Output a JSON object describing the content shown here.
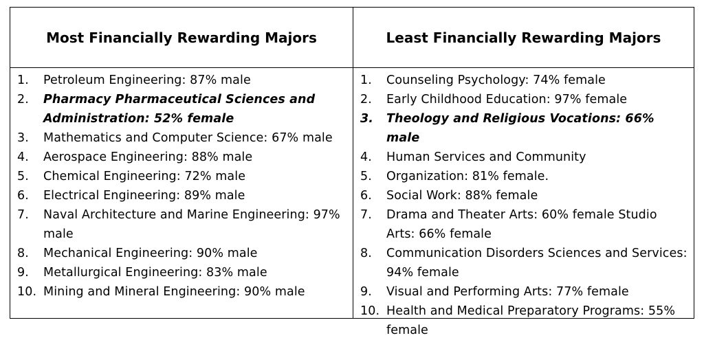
{
  "left": {
    "title": "Most Financially Rewarding Majors",
    "items": [
      {
        "num": "1.",
        "text": "Petroleum Engineering: 87% male"
      },
      {
        "num": "2.",
        "text": "Pharmacy Pharmaceutical Sciences and Administration: 52% female"
      },
      {
        "num": "3.",
        "text": "Mathematics and Computer Science: 67% male"
      },
      {
        "num": "4.",
        "text": "Aerospace Engineering: 88% male"
      },
      {
        "num": "5.",
        "text": "Chemical Engineering: 72% male"
      },
      {
        "num": "6.",
        "text": "Electrical Engineering: 89% male"
      },
      {
        "num": "7.",
        "text": "Naval Architecture and Marine Engineering: 97% male"
      },
      {
        "num": "8.",
        "text": "Mechanical Engineering: 90% male"
      },
      {
        "num": "9.",
        "text": "Metallurgical Engineering: 83% male"
      },
      {
        "num": "10.",
        "text": "Mining and Mineral Engineering: 90% male"
      }
    ]
  },
  "right": {
    "title": "Least Financially Rewarding Majors",
    "items": [
      {
        "num": "1.",
        "text": "Counseling Psychology: 74% female"
      },
      {
        "num": "2.",
        "text": "Early Childhood Education: 97% female"
      },
      {
        "num": "3.",
        "text": "Theology and Religious Vocations: 66% male"
      },
      {
        "num": "4.",
        "text": "Human Services and Community"
      },
      {
        "num": "5.",
        "text": "Organization: 81% female."
      },
      {
        "num": "6.",
        "text": "Social Work: 88% female"
      },
      {
        "num": "7.",
        "text": "Drama and Theater Arts: 60% female Studio Arts: 66% female"
      },
      {
        "num": "8.",
        "text": "Communication Disorders Sciences and Services: 94% female"
      },
      {
        "num": "9.",
        "text": "Visual and Performing Arts: 77% female"
      },
      {
        "num": "10.",
        "text": "Health and Medical Preparatory Programs: 55% female"
      }
    ]
  }
}
